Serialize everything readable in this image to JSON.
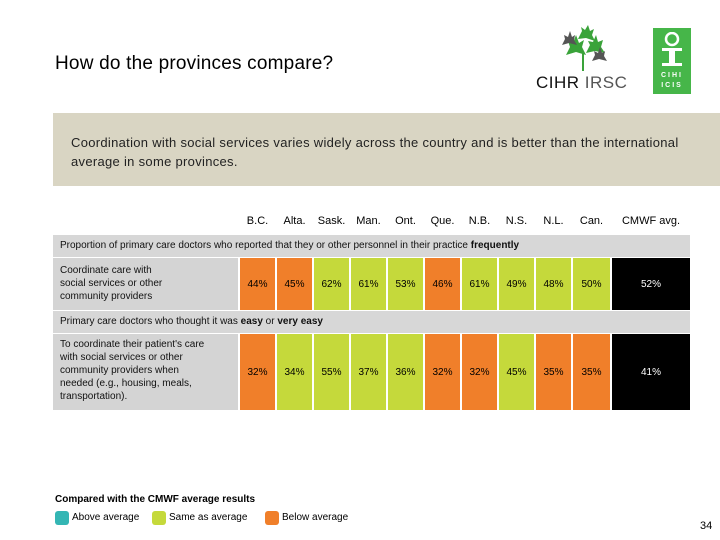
{
  "title": "How do the provinces compare?",
  "logos": {
    "cihr_text_a": "CIHR",
    "cihr_text_b": "IRSC",
    "cihi_line1": "CIHI",
    "cihi_line2": "ICIS"
  },
  "banner": "Coordination with social services varies widely across the country and is better than the international average in some provinces.",
  "columns": [
    "B.C.",
    "Alta.",
    "Sask.",
    "Man.",
    "Ont.",
    "Que.",
    "N.B.",
    "N.S.",
    "N.L.",
    "Can.",
    "CMWF avg."
  ],
  "colors": {
    "above": "#34b6b4",
    "same": "#c5d93b",
    "below": "#f07f2a",
    "avg": "#000000"
  },
  "sections": [
    {
      "heading_prefix": "Proportion of primary care doctors who reported that they or other personnel in their practice ",
      "heading_bold": "frequently",
      "rows": [
        {
          "label": "Coordinate care with social services or other community providers",
          "values": [
            "44%",
            "45%",
            "62%",
            "61%",
            "53%",
            "46%",
            "61%",
            "49%",
            "48%",
            "50%",
            "52%"
          ],
          "status": [
            "below",
            "below",
            "same",
            "same",
            "same",
            "below",
            "same",
            "same",
            "same",
            "same",
            "avg"
          ]
        }
      ]
    },
    {
      "heading_prefix": "Primary care doctors who thought it was ",
      "heading_bold": "easy",
      "heading_mid": " or ",
      "heading_bold2": "very easy",
      "rows": [
        {
          "label": "To coordinate their patient's care with social services or other community providers when needed (e.g., housing, meals, transportation).",
          "values": [
            "32%",
            "34%",
            "55%",
            "37%",
            "36%",
            "32%",
            "32%",
            "45%",
            "35%",
            "35%",
            "41%"
          ],
          "status": [
            "below",
            "same",
            "same",
            "same",
            "same",
            "below",
            "below",
            "same",
            "below",
            "below",
            "avg"
          ]
        }
      ]
    }
  ],
  "legend": {
    "title": "Compared with the CMWF average results",
    "above": "Above average",
    "same": "Same as average",
    "below": "Below average"
  },
  "page_number": "34"
}
